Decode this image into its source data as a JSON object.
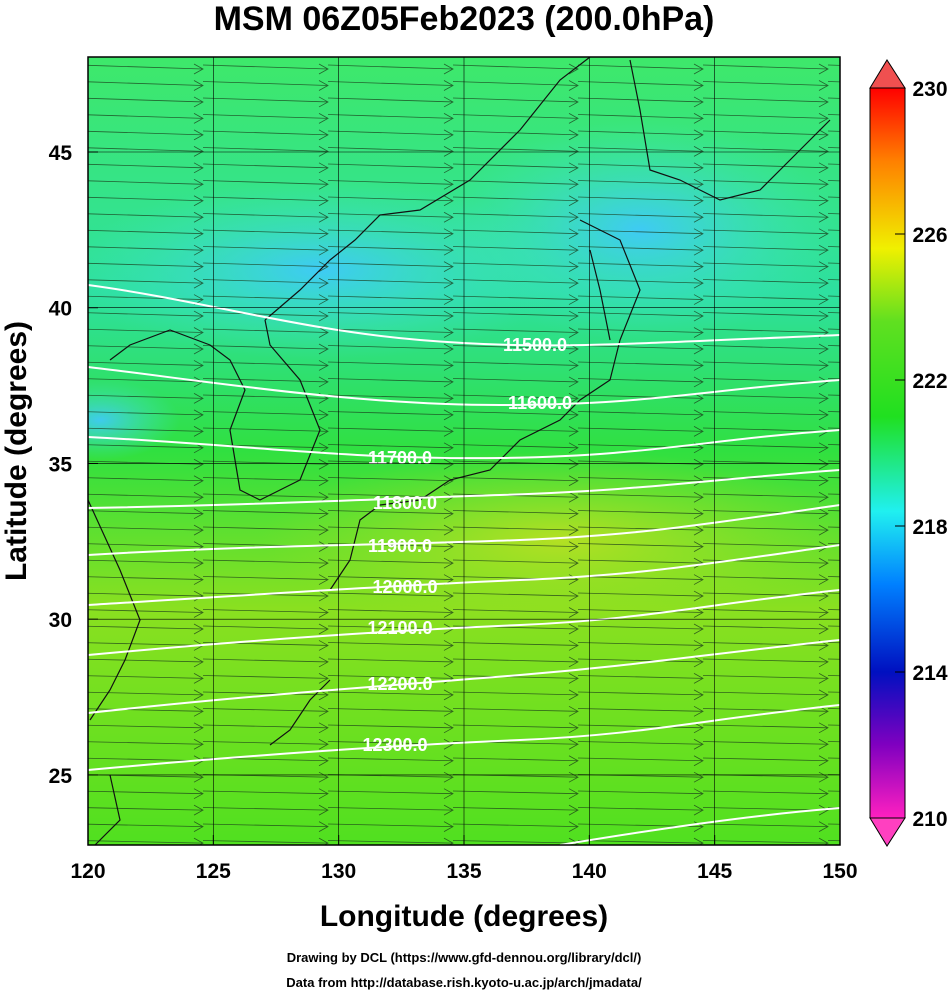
{
  "chart_data": {
    "type": "map",
    "title": "MSM 06Z05Feb2023 (200.0hPa)",
    "x_label": "Longitude (degrees)",
    "y_label": "Latitude  (degrees)",
    "xlim": [
      120,
      150
    ],
    "ylim": [
      22.75,
      48.05
    ],
    "xticks": [
      120,
      125,
      130,
      135,
      140,
      145,
      150
    ],
    "yticks": [
      25,
      30,
      35,
      40,
      45
    ],
    "colorbar": {
      "lim": [
        210,
        230
      ],
      "ticks": [
        210,
        214,
        218,
        222,
        226,
        230
      ]
    },
    "contour_labels": [
      {
        "value": 11500,
        "label": "11500.0"
      },
      {
        "value": 11600,
        "label": "11600.0"
      },
      {
        "value": 11700,
        "label": "11700.0"
      },
      {
        "value": 11800,
        "label": "11800.0"
      },
      {
        "value": 11900,
        "label": "11900.0"
      },
      {
        "value": 12000,
        "label": "12000.0"
      },
      {
        "value": 12100,
        "label": "12100.0"
      },
      {
        "value": 12200,
        "label": "12200.0"
      },
      {
        "value": 12300,
        "label": "12300.0"
      }
    ],
    "credits": [
      "Drawing by DCL (https://www.gfd-dennou.org/library/dcl/)",
      "Data from http://database.rish.kyoto-u.ac.jp/arch/jmadata/"
    ]
  }
}
